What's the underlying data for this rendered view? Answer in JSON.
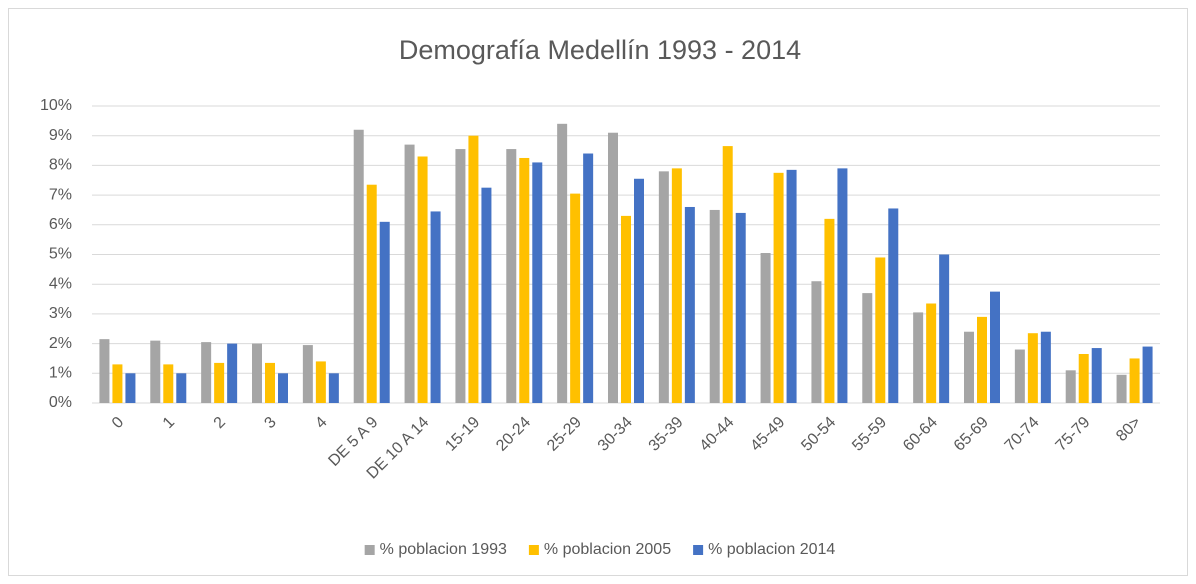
{
  "chart_data": {
    "type": "bar",
    "title": "Demografía Medellín 1993 - 2014",
    "categories": [
      "0",
      "1",
      "2",
      "3",
      "4",
      "DE 5 A 9",
      "DE 10 A 14",
      "15-19",
      "20-24",
      "25-29",
      "30-34",
      "35-39",
      "40-44",
      "45-49",
      "50-54",
      "55-59",
      "60-64",
      "65-69",
      "70-74",
      "75-79",
      "80>"
    ],
    "series": [
      {
        "name": "% poblacion 1993",
        "color": "#a5a5a5",
        "values": [
          2.15,
          2.1,
          2.05,
          2.0,
          1.95,
          9.2,
          8.7,
          8.55,
          8.55,
          9.4,
          9.1,
          7.8,
          6.5,
          5.05,
          4.1,
          3.7,
          3.05,
          2.4,
          1.8,
          1.1,
          0.95
        ]
      },
      {
        "name": "% poblacion 2005",
        "color": "#ffc000",
        "values": [
          1.3,
          1.3,
          1.35,
          1.35,
          1.4,
          7.35,
          8.3,
          9.0,
          8.25,
          7.05,
          6.3,
          7.9,
          8.65,
          7.75,
          6.2,
          4.9,
          3.35,
          2.9,
          2.35,
          1.65,
          1.5
        ]
      },
      {
        "name": "% poblacion 2014",
        "color": "#4472c4",
        "values": [
          1.0,
          1.0,
          2.0,
          1.0,
          1.0,
          6.1,
          6.45,
          7.25,
          8.1,
          8.4,
          7.55,
          6.6,
          6.4,
          7.85,
          7.9,
          6.55,
          5.0,
          3.75,
          2.4,
          1.85,
          1.9
        ]
      }
    ],
    "ylim": [
      0,
      10
    ],
    "yticks": [
      {
        "value": 0,
        "label": "0%"
      },
      {
        "value": 1,
        "label": "1%"
      },
      {
        "value": 2,
        "label": "2%"
      },
      {
        "value": 3,
        "label": "3%"
      },
      {
        "value": 4,
        "label": "4%"
      },
      {
        "value": 5,
        "label": "5%"
      },
      {
        "value": 6,
        "label": "6%"
      },
      {
        "value": 7,
        "label": "7%"
      },
      {
        "value": 8,
        "label": "8%"
      },
      {
        "value": 9,
        "label": "9%"
      },
      {
        "value": 10,
        "label": "10%"
      }
    ],
    "grid": true,
    "legend": "bottom"
  }
}
